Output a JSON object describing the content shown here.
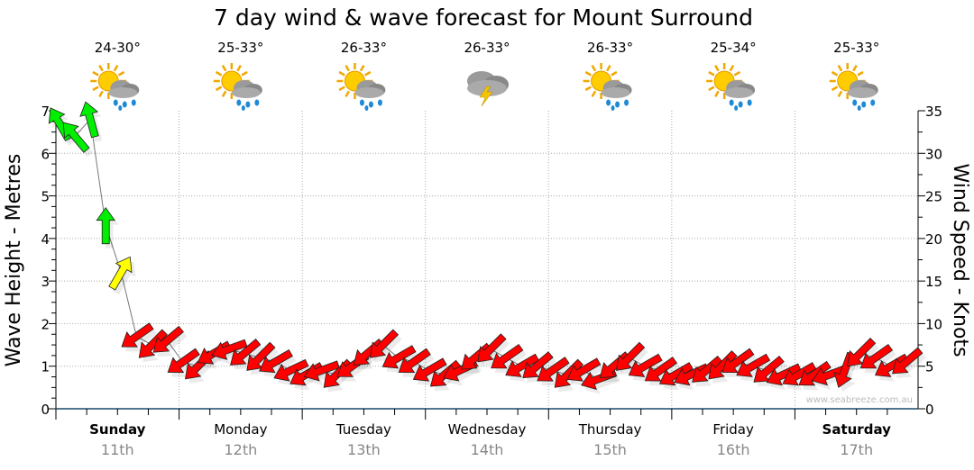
{
  "chart_data": {
    "type": "scatter",
    "title": "7 day wind & wave forecast for Mount Surround",
    "ylabel_left": "Wave Height - Metres",
    "ylabel_right": "Wind Speed - Knots",
    "ylim_left": [
      0,
      7
    ],
    "ylim_right": [
      0,
      35
    ],
    "yticks_left": [
      "0",
      "1",
      "2",
      "3",
      "4",
      "5",
      "6",
      "7"
    ],
    "yticks_right": [
      "0",
      "5",
      "10",
      "15",
      "20",
      "25",
      "30",
      "35"
    ],
    "grid": true,
    "watermark": "www.seabreeze.com.au",
    "days": [
      {
        "name": "Sunday",
        "date": "11th",
        "temp": "24-30°",
        "icon": "sun-cloud-rain-icon",
        "bold": true
      },
      {
        "name": "Monday",
        "date": "12th",
        "temp": "25-33°",
        "icon": "sun-cloud-rain-icon",
        "bold": false
      },
      {
        "name": "Tuesday",
        "date": "13th",
        "temp": "26-33°",
        "icon": "sun-cloud-rain-icon",
        "bold": false
      },
      {
        "name": "Wednesday",
        "date": "14th",
        "temp": "26-33°",
        "icon": "storm-cloud-icon",
        "bold": false
      },
      {
        "name": "Thursday",
        "date": "15th",
        "temp": "26-33°",
        "icon": "sun-cloud-rain-icon",
        "bold": false
      },
      {
        "name": "Friday",
        "date": "16th",
        "temp": "25-34°",
        "icon": "sun-cloud-rain-icon",
        "bold": false
      },
      {
        "name": "Saturday",
        "date": "17th",
        "temp": "25-33°",
        "icon": "sun-cloud-rain-icon",
        "bold": true
      }
    ],
    "wind_step_hours": 3,
    "wind_knots": [
      33.5,
      32,
      34,
      21.5,
      16,
      8.5,
      7.5,
      8,
      5.5,
      5,
      6.5,
      7,
      6.5,
      6,
      5.5,
      4.5,
      4,
      4.5,
      4,
      5,
      6.5,
      7.5,
      6,
      5.5,
      4.5,
      4,
      4.5,
      6,
      7,
      6,
      5,
      5,
      4.5,
      4,
      4.5,
      3.5,
      5,
      6,
      5,
      4.5,
      4,
      4,
      4.5,
      5,
      5.5,
      5,
      4.5,
      4,
      4,
      4,
      4,
      4.5,
      6.5,
      6,
      5,
      5.5
    ],
    "wind_direction_deg": [
      330,
      320,
      345,
      0,
      30,
      235,
      225,
      230,
      235,
      225,
      240,
      250,
      230,
      225,
      240,
      245,
      240,
      250,
      225,
      235,
      230,
      225,
      240,
      235,
      240,
      230,
      245,
      230,
      225,
      235,
      240,
      230,
      235,
      225,
      240,
      250,
      230,
      225,
      240,
      235,
      240,
      245,
      230,
      225,
      235,
      240,
      230,
      245,
      240,
      235,
      250,
      200,
      225,
      235,
      240,
      230
    ],
    "colors": {
      "strong": "#00ee00",
      "moderate": "#ffff00",
      "light": "#ff0000"
    }
  }
}
